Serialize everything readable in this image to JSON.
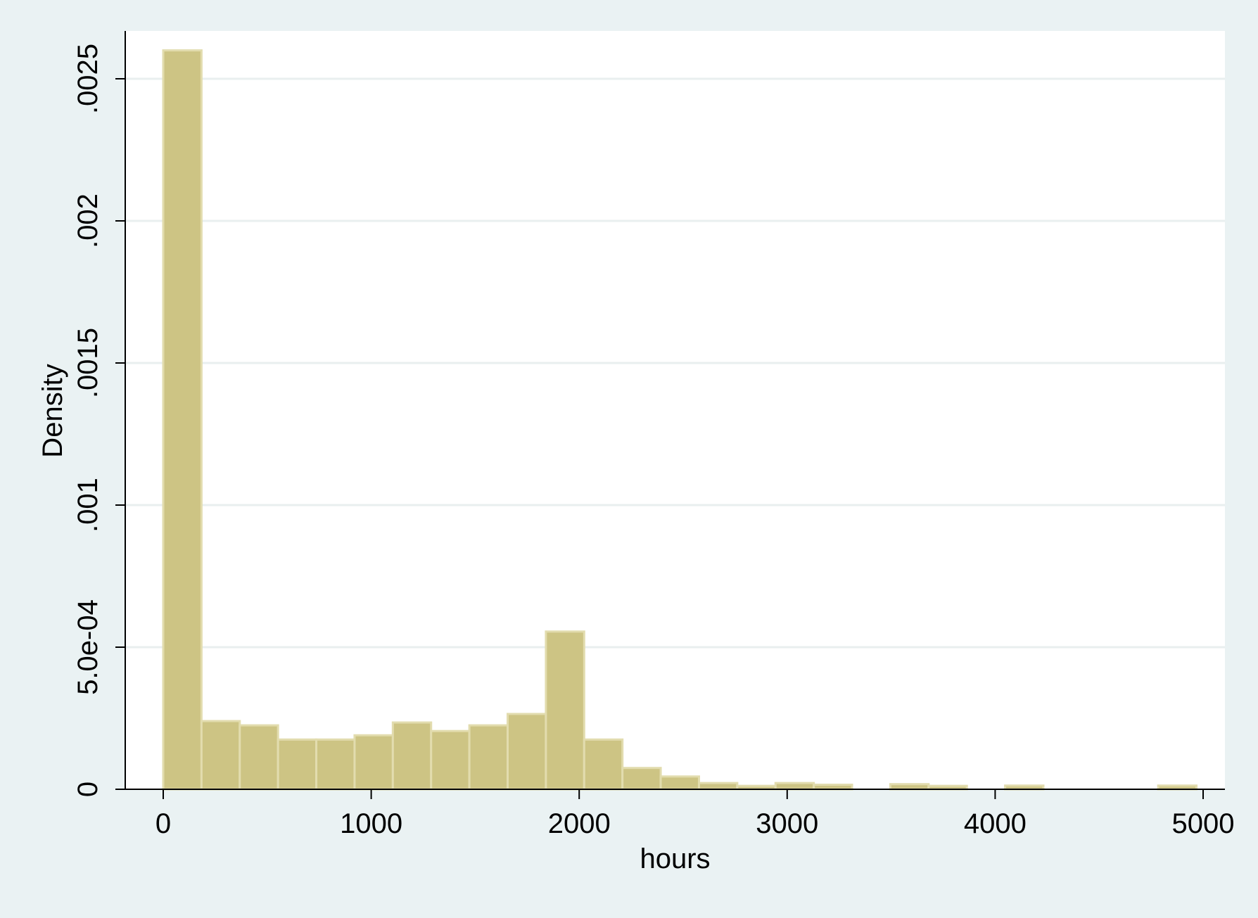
{
  "chart_data": {
    "type": "bar",
    "subtype": "histogram",
    "title": "",
    "xlabel": "hours",
    "ylabel": "Density",
    "xlim": [
      -190,
      4990
    ],
    "ylim": [
      0,
      0.00266
    ],
    "x_ticks": [
      0,
      1000,
      2000,
      3000,
      4000,
      5000
    ],
    "x_tick_labels": [
      "0",
      "1000",
      "2000",
      "3000",
      "4000",
      "5000"
    ],
    "y_ticks": [
      0,
      0.0005,
      0.001,
      0.0015,
      0.002,
      0.0025
    ],
    "y_tick_labels": [
      "0",
      "5.0e-04",
      ".001",
      ".0015",
      ".002",
      ".0025"
    ],
    "grid": true,
    "legend": "none",
    "colors": {
      "bar_fill": "#cdc484",
      "bar_edge": "#e2dcae",
      "plot_bg": "#ffffff",
      "outer_bg": "#eaf2f3",
      "grid": "#e9efef"
    },
    "bins": [
      {
        "x0": 0,
        "x1": 184,
        "density": 0.0026
      },
      {
        "x0": 184,
        "x1": 368,
        "density": 0.00024
      },
      {
        "x0": 368,
        "x1": 552,
        "density": 0.000225
      },
      {
        "x0": 552,
        "x1": 736,
        "density": 0.000175
      },
      {
        "x0": 736,
        "x1": 920,
        "density": 0.000175
      },
      {
        "x0": 920,
        "x1": 1104,
        "density": 0.00019
      },
      {
        "x0": 1104,
        "x1": 1288,
        "density": 0.000235
      },
      {
        "x0": 1288,
        "x1": 1472,
        "density": 0.000205
      },
      {
        "x0": 1472,
        "x1": 1656,
        "density": 0.000225
      },
      {
        "x0": 1656,
        "x1": 1840,
        "density": 0.000265
      },
      {
        "x0": 1840,
        "x1": 2024,
        "density": 0.000555
      },
      {
        "x0": 2024,
        "x1": 2208,
        "density": 0.000175
      },
      {
        "x0": 2208,
        "x1": 2392,
        "density": 7.5e-05
      },
      {
        "x0": 2392,
        "x1": 2576,
        "density": 4.5e-05
      },
      {
        "x0": 2576,
        "x1": 2760,
        "density": 2.2e-05
      },
      {
        "x0": 2760,
        "x1": 2944,
        "density": 1.2e-05
      },
      {
        "x0": 2944,
        "x1": 3128,
        "density": 2.2e-05
      },
      {
        "x0": 3128,
        "x1": 3312,
        "density": 1.6e-05
      },
      {
        "x0": 3312,
        "x1": 3496,
        "density": 0
      },
      {
        "x0": 3496,
        "x1": 3680,
        "density": 1.8e-05
      },
      {
        "x0": 3680,
        "x1": 3864,
        "density": 1.2e-05
      },
      {
        "x0": 3864,
        "x1": 4048,
        "density": 0
      },
      {
        "x0": 4048,
        "x1": 4232,
        "density": 1.3e-05
      },
      {
        "x0": 4232,
        "x1": 4416,
        "density": 0
      },
      {
        "x0": 4416,
        "x1": 4600,
        "density": 0
      },
      {
        "x0": 4600,
        "x1": 4784,
        "density": 0
      },
      {
        "x0": 4784,
        "x1": 4968,
        "density": 1.3e-05
      }
    ]
  }
}
